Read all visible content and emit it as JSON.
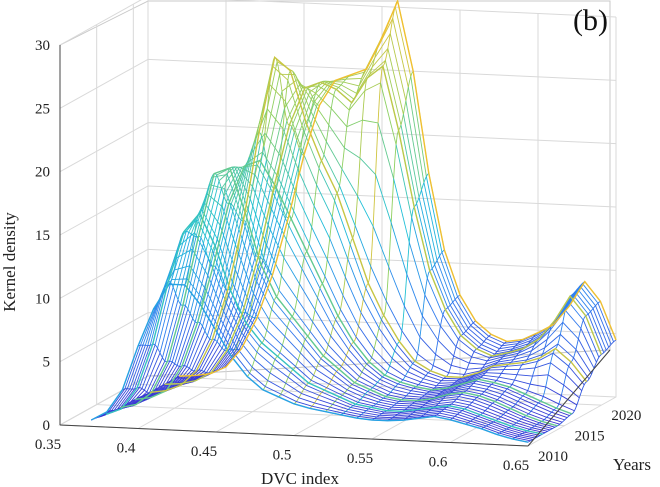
{
  "chart_data": {
    "type": "surface-3d",
    "panel_label": "(b)",
    "xlabel": "DVC index",
    "ylabel": "Years",
    "zlabel": "Kernel density",
    "xlim": [
      0.35,
      0.65
    ],
    "ylim": [
      2010,
      2022
    ],
    "zlim": [
      0,
      30
    ],
    "x_ticks": [
      "0.35",
      "0.4",
      "0.45",
      "0.5",
      "0.55",
      "0.6",
      "0.65"
    ],
    "y_ticks": [
      "2010",
      "2015",
      "2020"
    ],
    "z_ticks": [
      "0",
      "5",
      "10",
      "15",
      "20",
      "25",
      "30"
    ],
    "grid": true,
    "colormap": [
      "#3a2fd0",
      "#2f7ff0",
      "#20c0d8",
      "#8fd060",
      "#f0c030"
    ],
    "x": [
      0.37,
      0.38,
      0.39,
      0.4,
      0.41,
      0.42,
      0.43,
      0.44,
      0.45,
      0.46,
      0.47,
      0.48,
      0.49,
      0.5,
      0.51,
      0.52,
      0.53,
      0.54,
      0.55,
      0.56,
      0.57,
      0.58,
      0.59,
      0.6,
      0.61,
      0.62,
      0.63,
      0.64,
      0.65
    ],
    "series": [
      {
        "name": "2010",
        "values": [
          0.5,
          1.2,
          3.0,
          6.5,
          9.5,
          11.5,
          11.5,
          10.0,
          8.0,
          6.0,
          4.5,
          3.5,
          3.0,
          2.5,
          2.2,
          2.0,
          1.8,
          1.6,
          1.5,
          1.5,
          1.6,
          1.8,
          2.0,
          1.8,
          1.5,
          1.2,
          0.8,
          0.5,
          0.3
        ]
      },
      {
        "name": "2012",
        "values": [
          0.3,
          0.8,
          2.5,
          6.0,
          11.0,
          15.0,
          16.5,
          14.0,
          10.5,
          8.0,
          6.5,
          5.5,
          4.5,
          3.5,
          3.0,
          2.5,
          2.0,
          1.8,
          1.6,
          1.6,
          1.8,
          2.0,
          2.2,
          2.0,
          1.6,
          1.2,
          0.8,
          0.5,
          0.3
        ]
      },
      {
        "name": "2014",
        "values": [
          0.2,
          0.5,
          1.5,
          4.0,
          8.5,
          14.0,
          19.0,
          19.5,
          16.0,
          12.0,
          9.5,
          8.0,
          6.5,
          5.0,
          4.0,
          3.0,
          2.5,
          2.0,
          1.8,
          1.8,
          2.0,
          2.4,
          2.6,
          2.4,
          2.0,
          1.5,
          1.0,
          0.6,
          0.3
        ]
      },
      {
        "name": "2016",
        "values": [
          0.2,
          0.4,
          1.0,
          3.0,
          6.5,
          11.0,
          16.0,
          19.0,
          19.5,
          17.5,
          15.0,
          12.5,
          10.0,
          7.5,
          5.5,
          4.0,
          3.0,
          2.5,
          2.2,
          2.0,
          2.2,
          2.6,
          3.0,
          2.8,
          2.5,
          2.0,
          1.5,
          1.0,
          0.6
        ]
      },
      {
        "name": "2018",
        "values": [
          0.1,
          0.3,
          0.8,
          2.0,
          4.5,
          8.5,
          14.0,
          21.0,
          27.0,
          26.0,
          22.0,
          19.0,
          16.5,
          13.0,
          9.5,
          7.0,
          5.0,
          3.5,
          2.8,
          2.4,
          2.4,
          2.8,
          3.4,
          3.6,
          3.8,
          4.2,
          5.0,
          4.0,
          2.5
        ]
      },
      {
        "name": "2020",
        "values": [
          0.1,
          0.2,
          0.5,
          1.2,
          3.0,
          6.0,
          10.5,
          16.0,
          21.0,
          24.0,
          24.5,
          24.0,
          23.0,
          25.0,
          26.0,
          21.0,
          15.0,
          10.0,
          7.0,
          5.0,
          4.0,
          3.5,
          3.8,
          4.2,
          5.0,
          6.5,
          8.5,
          7.0,
          4.0
        ]
      },
      {
        "name": "2022",
        "values": [
          0.1,
          0.2,
          0.4,
          1.0,
          2.5,
          5.0,
          8.5,
          13.0,
          18.0,
          22.0,
          24.0,
          24.5,
          25.0,
          27.5,
          30.5,
          25.0,
          17.0,
          11.0,
          7.5,
          5.5,
          4.5,
          4.0,
          4.2,
          4.8,
          5.5,
          7.0,
          9.0,
          7.5,
          4.5
        ]
      }
    ]
  }
}
